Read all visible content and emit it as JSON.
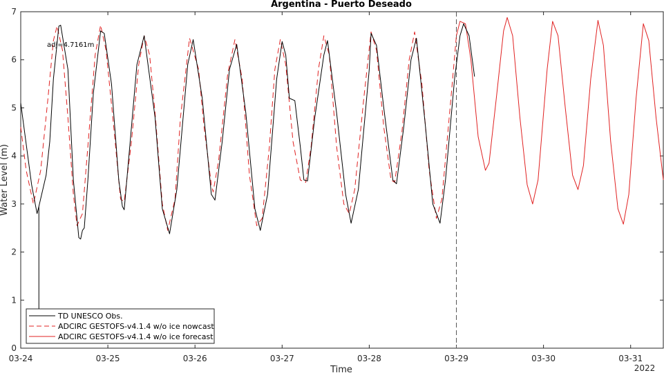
{
  "chart_data": {
    "type": "line",
    "title": "Argentina - Puerto Deseado",
    "xlabel": "Time",
    "ylabel": "Water Level (m)",
    "year_label": "2022",
    "x_unit": "day",
    "xlim": [
      "03-24 00:00",
      "03-31 09:00"
    ],
    "ylim": [
      0,
      7
    ],
    "x_ticks": [
      "03-24",
      "03-25",
      "03-26",
      "03-27",
      "03-28",
      "03-29",
      "03-30",
      "03-31"
    ],
    "y_ticks": [
      "0",
      "1",
      "2",
      "3",
      "4",
      "5",
      "6",
      "7"
    ],
    "nowcast_forecast_boundary": "03-29 00:00",
    "annotation": "adj=4.7161m",
    "legend": {
      "placement": "bottom-left",
      "entries": [
        "TD UNESCO Obs.",
        "ADCIRC GESTOFS-v4.1.4 w/o ice nowcast",
        "ADCIRC GESTOFS-v4.1.4 w/o ice forecast"
      ]
    },
    "series": [
      {
        "name": "TD UNESCO Obs.",
        "color": "#000000",
        "style": "solid",
        "points": [
          [
            "03-24 00:00",
            5.1
          ],
          [
            "03-24 03:00",
            3.4
          ],
          [
            "03-24 04:30",
            2.8
          ],
          [
            "03-24 05:00",
            2.95
          ],
          [
            "03-24 05:00",
            0.7
          ],
          [
            "03-24 05:00",
            2.95
          ],
          [
            "03-24 07:00",
            3.6
          ],
          [
            "03-24 08:00",
            4.3
          ],
          [
            "03-24 09:00",
            5.6
          ],
          [
            "03-24 10:30",
            6.7
          ],
          [
            "03-24 11:00",
            6.72
          ],
          [
            "03-24 13:00",
            5.8
          ],
          [
            "03-24 14:30",
            3.5
          ],
          [
            "03-24 16:00",
            2.3
          ],
          [
            "03-24 16:30",
            2.27
          ],
          [
            "03-24 17:00",
            2.45
          ],
          [
            "03-24 17:30",
            2.5
          ],
          [
            "03-24 18:30",
            3.5
          ],
          [
            "03-24 20:00",
            5.3
          ],
          [
            "03-24 22:00",
            6.6
          ],
          [
            "03-24 23:00",
            6.55
          ],
          [
            "03-25 01:00",
            5.5
          ],
          [
            "03-25 03:00",
            3.5
          ],
          [
            "03-25 04:00",
            2.95
          ],
          [
            "03-25 04:30",
            2.88
          ],
          [
            "03-25 06:30",
            4.6
          ],
          [
            "03-25 08:00",
            5.9
          ],
          [
            "03-25 10:00",
            6.5
          ],
          [
            "03-25 13:00",
            4.8
          ],
          [
            "03-25 15:00",
            2.9
          ],
          [
            "03-25 17:00",
            2.38
          ],
          [
            "03-25 19:00",
            3.3
          ],
          [
            "03-25 22:00",
            5.9
          ],
          [
            "03-25 23:30",
            6.42
          ],
          [
            "03-26 02:00",
            5.2
          ],
          [
            "03-26 04:30",
            3.2
          ],
          [
            "03-26 05:30",
            3.08
          ],
          [
            "03-26 07:30",
            4.3
          ],
          [
            "03-26 09:30",
            5.8
          ],
          [
            "03-26 11:30",
            6.32
          ],
          [
            "03-26 14:00",
            4.9
          ],
          [
            "03-26 16:30",
            2.9
          ],
          [
            "03-26 18:00",
            2.45
          ],
          [
            "03-26 20:00",
            3.2
          ],
          [
            "03-26 22:30",
            5.6
          ],
          [
            "03-27 00:00",
            6.38
          ],
          [
            "03-27 01:00",
            6.1
          ],
          [
            "03-27 02:00",
            5.2
          ],
          [
            "03-27 03:30",
            5.15
          ],
          [
            "03-27 05:00",
            4.2
          ],
          [
            "03-27 06:00",
            3.5
          ],
          [
            "03-27 07:00",
            3.48
          ],
          [
            "03-27 09:00",
            4.8
          ],
          [
            "03-27 11:30",
            6.1
          ],
          [
            "03-27 12:30",
            6.4
          ],
          [
            "03-27 15:00",
            4.9
          ],
          [
            "03-27 17:30",
            3.2
          ],
          [
            "03-27 19:00",
            2.6
          ],
          [
            "03-27 21:00",
            3.3
          ],
          [
            "03-28 00:00",
            5.8
          ],
          [
            "03-28 00:30",
            6.55
          ],
          [
            "03-28 02:00",
            6.3
          ],
          [
            "03-28 04:00",
            5.0
          ],
          [
            "03-28 06:30",
            3.5
          ],
          [
            "03-28 07:30",
            3.42
          ],
          [
            "03-28 09:30",
            4.6
          ],
          [
            "03-28 11:30",
            6.0
          ],
          [
            "03-28 13:00",
            6.45
          ],
          [
            "03-28 15:30",
            4.6
          ],
          [
            "03-28 17:30",
            3.0
          ],
          [
            "03-28 19:30",
            2.6
          ],
          [
            "03-28 21:00",
            3.5
          ],
          [
            "03-28 23:30",
            5.6
          ],
          [
            "03-29 01:00",
            6.5
          ],
          [
            "03-29 02:00",
            6.75
          ],
          [
            "03-29 03:30",
            6.5
          ],
          [
            "03-29 05:00",
            5.65
          ]
        ]
      },
      {
        "name": "ADCIRC GESTOFS-v4.1.4 w/o ice nowcast",
        "color": "#e02020",
        "style": "dashed",
        "points": [
          [
            "03-24 00:00",
            4.6
          ],
          [
            "03-24 01:30",
            3.7
          ],
          [
            "03-24 03:30",
            3.0
          ],
          [
            "03-24 05:30",
            3.7
          ],
          [
            "03-24 07:30",
            5.2
          ],
          [
            "03-24 09:00",
            6.4
          ],
          [
            "03-24 10:00",
            6.7
          ],
          [
            "03-24 11:30",
            6.2
          ],
          [
            "03-24 13:00",
            4.8
          ],
          [
            "03-24 14:30",
            3.2
          ],
          [
            "03-24 15:30",
            2.55
          ],
          [
            "03-24 17:00",
            2.8
          ],
          [
            "03-24 18:30",
            4.2
          ],
          [
            "03-24 20:30",
            6.1
          ],
          [
            "03-24 22:00",
            6.72
          ],
          [
            "03-24 23:30",
            6.2
          ],
          [
            "03-25 01:30",
            4.7
          ],
          [
            "03-25 03:30",
            3.1
          ],
          [
            "03-25 04:30",
            3.05
          ],
          [
            "03-25 06:30",
            4.3
          ],
          [
            "03-25 08:30",
            5.9
          ],
          [
            "03-25 10:00",
            6.5
          ],
          [
            "03-25 11:30",
            6.1
          ],
          [
            "03-25 13:00",
            4.9
          ],
          [
            "03-25 15:00",
            3.0
          ],
          [
            "03-25 16:30",
            2.45
          ],
          [
            "03-25 18:30",
            3.1
          ],
          [
            "03-25 20:00",
            4.8
          ],
          [
            "03-25 22:30",
            6.45
          ],
          [
            "03-26 01:00",
            5.8
          ],
          [
            "03-26 02:30",
            4.6
          ],
          [
            "03-26 04:30",
            3.4
          ],
          [
            "03-26 05:00",
            3.25
          ],
          [
            "03-26 06:30",
            3.9
          ],
          [
            "03-26 09:00",
            5.7
          ],
          [
            "03-26 11:00",
            6.42
          ],
          [
            "03-26 13:00",
            5.6
          ],
          [
            "03-26 15:00",
            3.6
          ],
          [
            "03-26 17:00",
            2.55
          ],
          [
            "03-26 18:30",
            2.7
          ],
          [
            "03-26 20:30",
            4.2
          ],
          [
            "03-26 22:00",
            5.8
          ],
          [
            "03-26 23:30",
            6.42
          ],
          [
            "03-27 01:00",
            5.9
          ],
          [
            "03-27 03:00",
            4.3
          ],
          [
            "03-27 05:00",
            3.5
          ],
          [
            "03-27 06:30",
            3.45
          ],
          [
            "03-27 08:00",
            4.2
          ],
          [
            "03-27 10:00",
            5.8
          ],
          [
            "03-27 11:30",
            6.5
          ],
          [
            "03-27 13:00",
            6.1
          ],
          [
            "03-27 15:00",
            4.2
          ],
          [
            "03-27 17:00",
            3.0
          ],
          [
            "03-27 18:30",
            2.8
          ],
          [
            "03-27 20:00",
            3.3
          ],
          [
            "03-27 22:30",
            5.2
          ],
          [
            "03-28 00:30",
            6.58
          ],
          [
            "03-28 02:00",
            6.2
          ],
          [
            "03-28 04:00",
            4.6
          ],
          [
            "03-28 06:00",
            3.5
          ],
          [
            "03-28 07:00",
            3.45
          ],
          [
            "03-28 09:00",
            4.5
          ],
          [
            "03-28 11:00",
            6.0
          ],
          [
            "03-28 12:30",
            6.58
          ],
          [
            "03-28 14:30",
            5.5
          ],
          [
            "03-28 16:30",
            3.7
          ],
          [
            "03-28 18:30",
            2.7
          ],
          [
            "03-28 20:00",
            3.1
          ],
          [
            "03-28 22:30",
            5.2
          ],
          [
            "03-29 00:00",
            6.5
          ]
        ]
      },
      {
        "name": "ADCIRC GESTOFS-v4.1.4 w/o ice forecast",
        "color": "#e02020",
        "style": "solid",
        "points": [
          [
            "03-29 00:00",
            6.5
          ],
          [
            "03-29 01:00",
            6.8
          ],
          [
            "03-29 02:30",
            6.75
          ],
          [
            "03-29 04:00",
            6.0
          ],
          [
            "03-29 06:00",
            4.4
          ],
          [
            "03-29 08:00",
            3.7
          ],
          [
            "03-29 09:00",
            3.85
          ],
          [
            "03-29 11:00",
            5.2
          ],
          [
            "03-29 13:00",
            6.6
          ],
          [
            "03-29 14:00",
            6.88
          ],
          [
            "03-29 15:30",
            6.5
          ],
          [
            "03-29 17:30",
            4.8
          ],
          [
            "03-29 19:30",
            3.4
          ],
          [
            "03-29 21:00",
            3.0
          ],
          [
            "03-29 22:30",
            3.5
          ],
          [
            "03-30 01:00",
            5.8
          ],
          [
            "03-30 02:30",
            6.8
          ],
          [
            "03-30 04:00",
            6.5
          ],
          [
            "03-30 06:00",
            5.0
          ],
          [
            "03-30 08:00",
            3.6
          ],
          [
            "03-30 09:30",
            3.3
          ],
          [
            "03-30 11:00",
            3.8
          ],
          [
            "03-30 13:00",
            5.6
          ],
          [
            "03-30 15:00",
            6.82
          ],
          [
            "03-30 16:30",
            6.3
          ],
          [
            "03-30 18:30",
            4.3
          ],
          [
            "03-30 20:30",
            2.9
          ],
          [
            "03-30 22:00",
            2.58
          ],
          [
            "03-30 23:30",
            3.2
          ],
          [
            "03-31 01:30",
            5.2
          ],
          [
            "03-31 03:30",
            6.75
          ],
          [
            "03-31 05:00",
            6.4
          ],
          [
            "03-31 07:00",
            4.8
          ],
          [
            "03-31 09:00",
            3.5
          ]
        ]
      }
    ]
  }
}
